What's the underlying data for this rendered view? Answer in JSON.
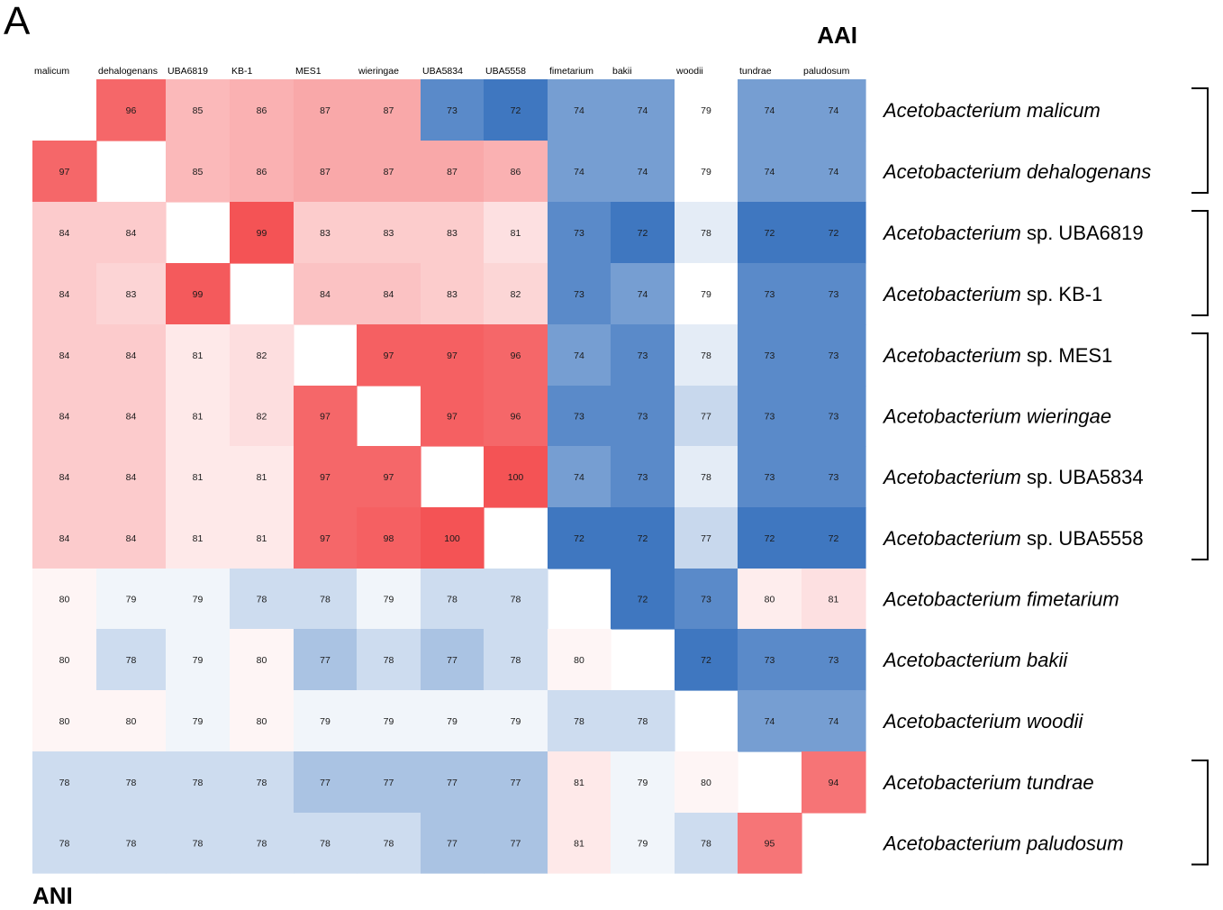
{
  "chart_data": {
    "type": "heatmap",
    "panel_letter": "A",
    "upper_triangle_label": "AAI",
    "lower_triangle_label": "ANI",
    "columns": [
      "malicum",
      "dehalogenans",
      "UBA6819",
      "KB-1",
      "MES1",
      "wieringae",
      "UBA5834",
      "UBA5558",
      "fimetarium",
      "bakii",
      "woodii",
      "tundrae",
      "paludosum"
    ],
    "rows": [
      {
        "genus": "Acetobacterium",
        "suffix": " malicum",
        "suffix_italic": true
      },
      {
        "genus": "Acetobacterium",
        "suffix": " dehalogenans",
        "suffix_italic": true
      },
      {
        "genus": "Acetobacterium",
        "suffix": " sp. UBA6819",
        "suffix_italic": false
      },
      {
        "genus": "Acetobacterium",
        "suffix": " sp. KB-1",
        "suffix_italic": false
      },
      {
        "genus": "Acetobacterium",
        "suffix": " sp. MES1",
        "suffix_italic": false
      },
      {
        "genus": "Acetobacterium",
        "suffix": " wieringae",
        "suffix_italic": true
      },
      {
        "genus": "Acetobacterium",
        "suffix": " sp. UBA5834",
        "suffix_italic": false
      },
      {
        "genus": "Acetobacterium",
        "suffix": " sp. UBA5558",
        "suffix_italic": false
      },
      {
        "genus": "Acetobacterium",
        "suffix": " fimetarium",
        "suffix_italic": true
      },
      {
        "genus": "Acetobacterium",
        "suffix": " bakii",
        "suffix_italic": true
      },
      {
        "genus": "Acetobacterium",
        "suffix": " woodii",
        "suffix_italic": true
      },
      {
        "genus": "Acetobacterium",
        "suffix": " tundrae",
        "suffix_italic": true
      },
      {
        "genus": "Acetobacterium",
        "suffix": " paludosum",
        "suffix_italic": true
      }
    ],
    "values": [
      [
        null,
        96,
        85,
        86,
        87,
        87,
        73,
        72,
        74,
        74,
        79,
        74,
        74
      ],
      [
        97,
        null,
        85,
        86,
        87,
        87,
        87,
        86,
        74,
        74,
        79,
        74,
        74
      ],
      [
        84,
        84,
        null,
        99,
        83,
        83,
        83,
        81,
        73,
        72,
        78,
        72,
        72
      ],
      [
        84,
        83,
        99,
        null,
        84,
        84,
        83,
        82,
        73,
        74,
        79,
        73,
        73
      ],
      [
        84,
        84,
        81,
        82,
        null,
        97,
        97,
        96,
        74,
        73,
        78,
        73,
        73
      ],
      [
        84,
        84,
        81,
        82,
        97,
        null,
        97,
        96,
        73,
        73,
        77,
        73,
        73
      ],
      [
        84,
        84,
        81,
        81,
        97,
        97,
        null,
        100,
        74,
        73,
        78,
        73,
        73
      ],
      [
        84,
        84,
        81,
        81,
        97,
        98,
        100,
        null,
        72,
        72,
        77,
        72,
        72
      ],
      [
        80,
        79,
        79,
        78,
        78,
        79,
        78,
        78,
        null,
        72,
        73,
        80,
        81
      ],
      [
        80,
        78,
        79,
        80,
        77,
        78,
        77,
        78,
        80,
        null,
        72,
        73,
        73
      ],
      [
        80,
        80,
        79,
        80,
        79,
        79,
        79,
        79,
        78,
        78,
        null,
        74,
        74
      ],
      [
        78,
        78,
        78,
        78,
        77,
        77,
        77,
        77,
        81,
        79,
        80,
        null,
        94
      ],
      [
        78,
        78,
        78,
        78,
        78,
        78,
        77,
        77,
        81,
        79,
        78,
        95,
        null
      ]
    ],
    "color_scale": {
      "low_color": "#3f77c0",
      "mid_color": "#ffffff",
      "high_color": "#f45355"
    },
    "row_groups": [
      [
        0,
        1
      ],
      [
        2,
        3
      ],
      [
        4,
        7
      ],
      [
        11,
        12
      ]
    ]
  }
}
